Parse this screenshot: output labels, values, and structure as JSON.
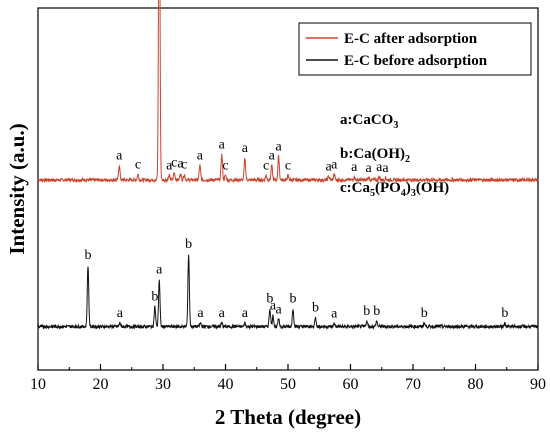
{
  "chart_data": {
    "type": "line",
    "xlabel": "2 Theta (degree)",
    "ylabel": "Intensity (a.u.)",
    "xlim": [
      10,
      90
    ],
    "xticks": [
      10,
      20,
      30,
      40,
      50,
      60,
      70,
      80,
      90
    ],
    "y_ticks_shown": false,
    "legend_position": "top-right",
    "series": [
      {
        "name": "E-C after adsorption",
        "color": "#c9442c",
        "baseline": 0.525,
        "peaks": [
          {
            "x": 23.0,
            "h": 0.04,
            "label": "a"
          },
          {
            "x": 26.0,
            "h": 0.015,
            "label": "c"
          },
          {
            "x": 29.4,
            "h": 0.91,
            "label": "a"
          },
          {
            "x": 31.0,
            "h": 0.012,
            "label": "a"
          },
          {
            "x": 31.8,
            "h": 0.02,
            "label": "c"
          },
          {
            "x": 32.8,
            "h": 0.018,
            "label": "a"
          },
          {
            "x": 33.4,
            "h": 0.015,
            "label": "c"
          },
          {
            "x": 35.9,
            "h": 0.04,
            "label": "a"
          },
          {
            "x": 39.4,
            "h": 0.07,
            "label": "a"
          },
          {
            "x": 40.0,
            "h": 0.012,
            "label": "c"
          },
          {
            "x": 43.1,
            "h": 0.06,
            "label": "a"
          },
          {
            "x": 46.5,
            "h": 0.012,
            "label": "c"
          },
          {
            "x": 47.4,
            "h": 0.04,
            "label": "a"
          },
          {
            "x": 48.5,
            "h": 0.065,
            "label": "a"
          },
          {
            "x": 50.0,
            "h": 0.012,
            "label": "c"
          },
          {
            "x": 56.5,
            "h": 0.01,
            "label": "a"
          },
          {
            "x": 57.4,
            "h": 0.015,
            "label": "a"
          },
          {
            "x": 60.6,
            "h": 0.008,
            "label": "a"
          },
          {
            "x": 62.9,
            "h": 0.006,
            "label": "a"
          },
          {
            "x": 64.6,
            "h": 0.008,
            "label": "a"
          },
          {
            "x": 65.6,
            "h": 0.006,
            "label": "a"
          }
        ]
      },
      {
        "name": "E-C before adsorption",
        "color": "#111111",
        "baseline": 0.12,
        "peaks": [
          {
            "x": 18.0,
            "h": 0.17,
            "label": "b"
          },
          {
            "x": 23.1,
            "h": 0.01,
            "label": "a"
          },
          {
            "x": 28.7,
            "h": 0.055,
            "label": "b"
          },
          {
            "x": 29.4,
            "h": 0.13,
            "label": "a"
          },
          {
            "x": 34.1,
            "h": 0.2,
            "label": "b"
          },
          {
            "x": 36.0,
            "h": 0.01,
            "label": "a"
          },
          {
            "x": 39.4,
            "h": 0.01,
            "label": "a"
          },
          {
            "x": 43.1,
            "h": 0.01,
            "label": "a"
          },
          {
            "x": 47.1,
            "h": 0.05,
            "label": "b"
          },
          {
            "x": 47.6,
            "h": 0.03,
            "label": "a"
          },
          {
            "x": 48.5,
            "h": 0.02,
            "label": "a"
          },
          {
            "x": 50.8,
            "h": 0.05,
            "label": "b"
          },
          {
            "x": 54.4,
            "h": 0.025,
            "label": "b"
          },
          {
            "x": 57.4,
            "h": 0.008,
            "label": "a"
          },
          {
            "x": 62.6,
            "h": 0.015,
            "label": "b"
          },
          {
            "x": 64.2,
            "h": 0.015,
            "label": "b"
          },
          {
            "x": 71.8,
            "h": 0.01,
            "label": "b"
          },
          {
            "x": 84.7,
            "h": 0.01,
            "label": "b"
          }
        ]
      }
    ],
    "phase_legend": [
      {
        "key": "a",
        "formula": "CaCO3"
      },
      {
        "key": "b",
        "formula": "Ca(OH)2"
      },
      {
        "key": "c",
        "formula": "Ca5(PO4)3(OH)"
      }
    ]
  }
}
